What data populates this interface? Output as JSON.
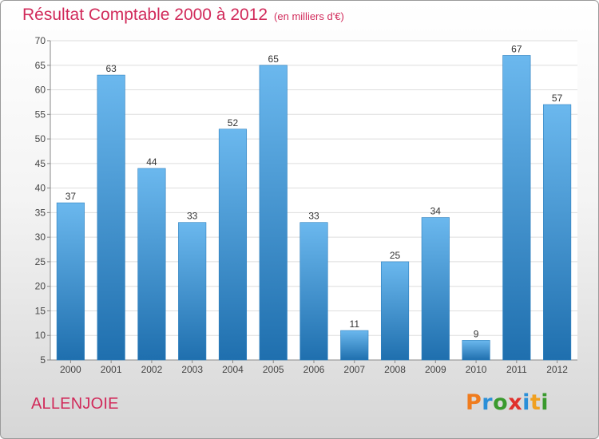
{
  "title": "Résultat Comptable 2000 à 2012",
  "subtitle": "(en milliers d'€)",
  "commune": "ALLENJOIE",
  "logo": {
    "letters": [
      "P",
      "r",
      "o",
      "x",
      "i",
      "t",
      "i"
    ],
    "colors": [
      "#f07c1e",
      "#2a8fd8",
      "#3a9a2e",
      "#e0302c",
      "#2a8fd8",
      "#f0a020",
      "#3a9a2e"
    ]
  },
  "colors": {
    "bar": "#3d95d8",
    "bar_light": "#6bb8ee",
    "bar_dark": "#1f6fae",
    "title": "#d12a5a",
    "grid": "#dddddd"
  },
  "chart_data": {
    "type": "bar",
    "title": "Résultat Comptable 2000 à 2012",
    "subtitle": "(en milliers d'€)",
    "xlabel": "",
    "ylabel": "",
    "categories": [
      "2000",
      "2001",
      "2002",
      "2003",
      "2004",
      "2005",
      "2006",
      "2007",
      "2008",
      "2009",
      "2010",
      "2011",
      "2012"
    ],
    "values": [
      37,
      63,
      44,
      33,
      52,
      65,
      33,
      11,
      25,
      34,
      9,
      67,
      57
    ],
    "ylim": [
      5,
      70
    ],
    "yticks": [
      5,
      10,
      15,
      20,
      25,
      30,
      35,
      40,
      45,
      50,
      55,
      60,
      65,
      70
    ],
    "grid": true
  }
}
